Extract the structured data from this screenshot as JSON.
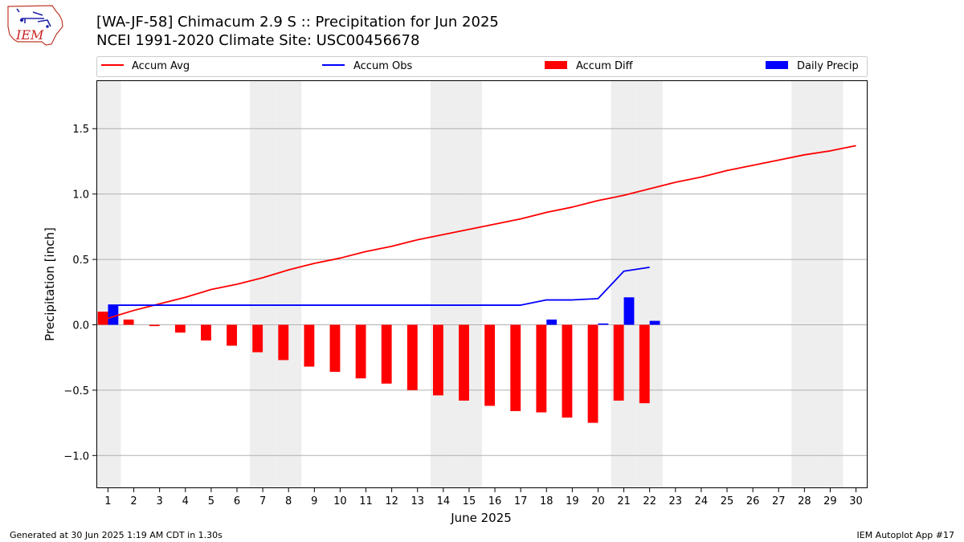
{
  "header": {
    "title_line1": "[WA-JF-58] Chimacum 2.9 S :: Precipitation for Jun 2025",
    "title_line2": "NCEI 1991-2020 Climate Site: USC00456678"
  },
  "logo": {
    "text": "IEM"
  },
  "footer": {
    "left": "Generated at 30 Jun 2025 1:19 AM CDT in 1.30s",
    "right": "IEM Autoplot App #17"
  },
  "colors": {
    "avg": "#ff0000",
    "obs": "#0000ff",
    "diff": "#ff0000",
    "daily": "#0000ff",
    "weekend_shade": "#eeeeee",
    "grid": "#b0b0b0"
  },
  "chart_data": {
    "type": "bar",
    "xlabel": "June 2025",
    "ylabel": "Precipitation [inch]",
    "ylim": [
      -1.25,
      1.87
    ],
    "yticks": [
      1.5,
      1.0,
      0.5,
      0.0,
      -0.5,
      -1.0
    ],
    "ytick_labels": [
      "1.5",
      "1.0",
      "0.5",
      "0.0",
      "−0.5",
      "−1.0"
    ],
    "days": [
      1,
      2,
      3,
      4,
      5,
      6,
      7,
      8,
      9,
      10,
      11,
      12,
      13,
      14,
      15,
      16,
      17,
      18,
      19,
      20,
      21,
      22,
      23,
      24,
      25,
      26,
      27,
      28,
      29,
      30
    ],
    "weekend_days": [
      1,
      7,
      8,
      14,
      15,
      21,
      22,
      28,
      29
    ],
    "grid": "horizontal",
    "legend_position": "top",
    "series": [
      {
        "name": "Accum Avg",
        "kind": "line",
        "values": [
          0.05,
          0.11,
          0.16,
          0.21,
          0.27,
          0.31,
          0.36,
          0.42,
          0.47,
          0.51,
          0.56,
          0.6,
          0.65,
          0.69,
          0.73,
          0.77,
          0.81,
          0.86,
          0.9,
          0.95,
          0.99,
          1.04,
          1.09,
          1.13,
          1.18,
          1.22,
          1.26,
          1.3,
          1.33,
          1.37
        ]
      },
      {
        "name": "Accum Obs",
        "kind": "line",
        "values": [
          0.15,
          0.15,
          0.15,
          0.15,
          0.15,
          0.15,
          0.15,
          0.15,
          0.15,
          0.15,
          0.15,
          0.15,
          0.15,
          0.15,
          0.15,
          0.15,
          0.15,
          0.19,
          0.19,
          0.2,
          0.41,
          0.44
        ]
      },
      {
        "name": "Accum Diff",
        "kind": "bar",
        "values": [
          0.1,
          0.04,
          -0.01,
          -0.06,
          -0.12,
          -0.16,
          -0.21,
          -0.27,
          -0.32,
          -0.36,
          -0.41,
          -0.45,
          -0.5,
          -0.54,
          -0.58,
          -0.62,
          -0.66,
          -0.67,
          -0.71,
          -0.75,
          -0.58,
          -0.6
        ]
      },
      {
        "name": "Daily Precip",
        "kind": "bar",
        "values": [
          0.15,
          0.0,
          0.0,
          0.0,
          0.0,
          0.0,
          0.0,
          0.0,
          0.0,
          0.0,
          0.0,
          0.0,
          0.0,
          0.0,
          0.0,
          0.0,
          0.0,
          0.04,
          0.0,
          0.01,
          0.21,
          0.03
        ]
      }
    ]
  }
}
